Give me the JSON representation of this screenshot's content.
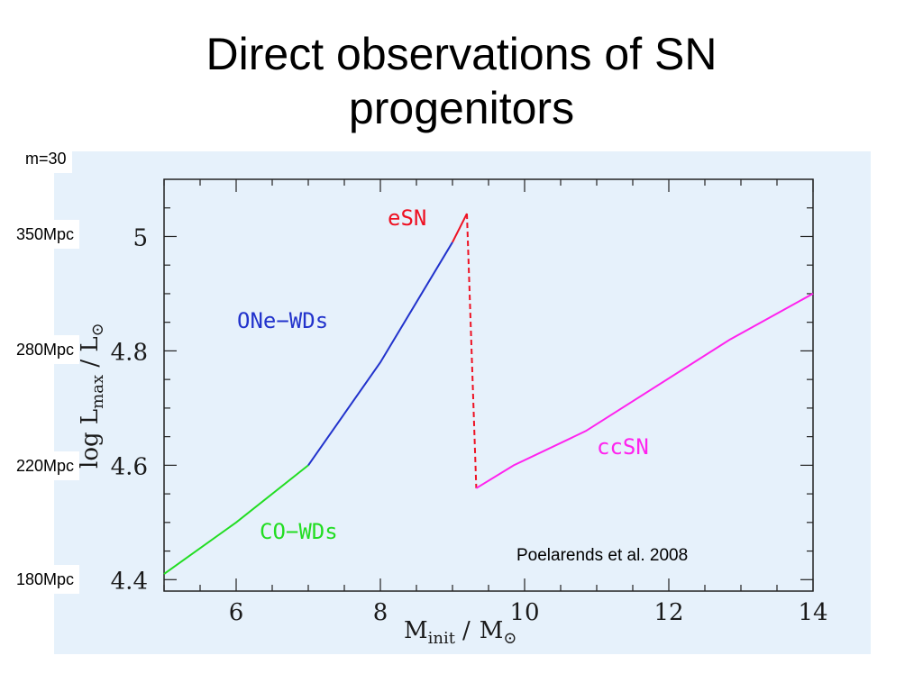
{
  "slide": {
    "title_line1": "Direct observations of SN",
    "title_line2": "progenitors",
    "citation": "Poelarends et al. 2008",
    "side_labels": [
      "m=30",
      "350Mpc",
      "280Mpc",
      "220Mpc",
      "180Mpc"
    ]
  },
  "chart_data": {
    "type": "line",
    "xlabel": "M_init / M_⊙",
    "ylabel": "log L_max / L_⊙",
    "xlim": [
      5,
      14
    ],
    "ylim": [
      4.38,
      5.1
    ],
    "xticks": [
      6,
      8,
      10,
      12,
      14
    ],
    "yticks": [
      4.4,
      4.6,
      4.8,
      5
    ],
    "yticklabels": [
      "4.4",
      "4.6",
      "4.8",
      "5"
    ],
    "series": [
      {
        "name": "CO−WDs",
        "color": "#22dd22",
        "dashed": false,
        "points": [
          [
            5.0,
            4.41
          ],
          [
            6.0,
            4.5
          ],
          [
            7.0,
            4.6
          ]
        ]
      },
      {
        "name": "ONe−WDs",
        "color": "#2233cc",
        "dashed": false,
        "points": [
          [
            7.0,
            4.6
          ],
          [
            8.0,
            4.78
          ],
          [
            9.0,
            4.99
          ]
        ]
      },
      {
        "name": "eSN",
        "color": "#ee1122",
        "dashed": false,
        "points": [
          [
            9.0,
            4.99
          ],
          [
            9.2,
            5.04
          ]
        ]
      },
      {
        "name": "",
        "color": "#ee1122",
        "dashed": true,
        "points": [
          [
            9.2,
            5.04
          ],
          [
            9.33,
            4.56
          ]
        ]
      },
      {
        "name": "ccSN",
        "color": "#ff22ee",
        "dashed": false,
        "points": [
          [
            9.33,
            4.56
          ],
          [
            9.85,
            4.6
          ],
          [
            10.85,
            4.66
          ],
          [
            12.85,
            4.82
          ],
          [
            14.0,
            4.9
          ]
        ]
      }
    ]
  }
}
